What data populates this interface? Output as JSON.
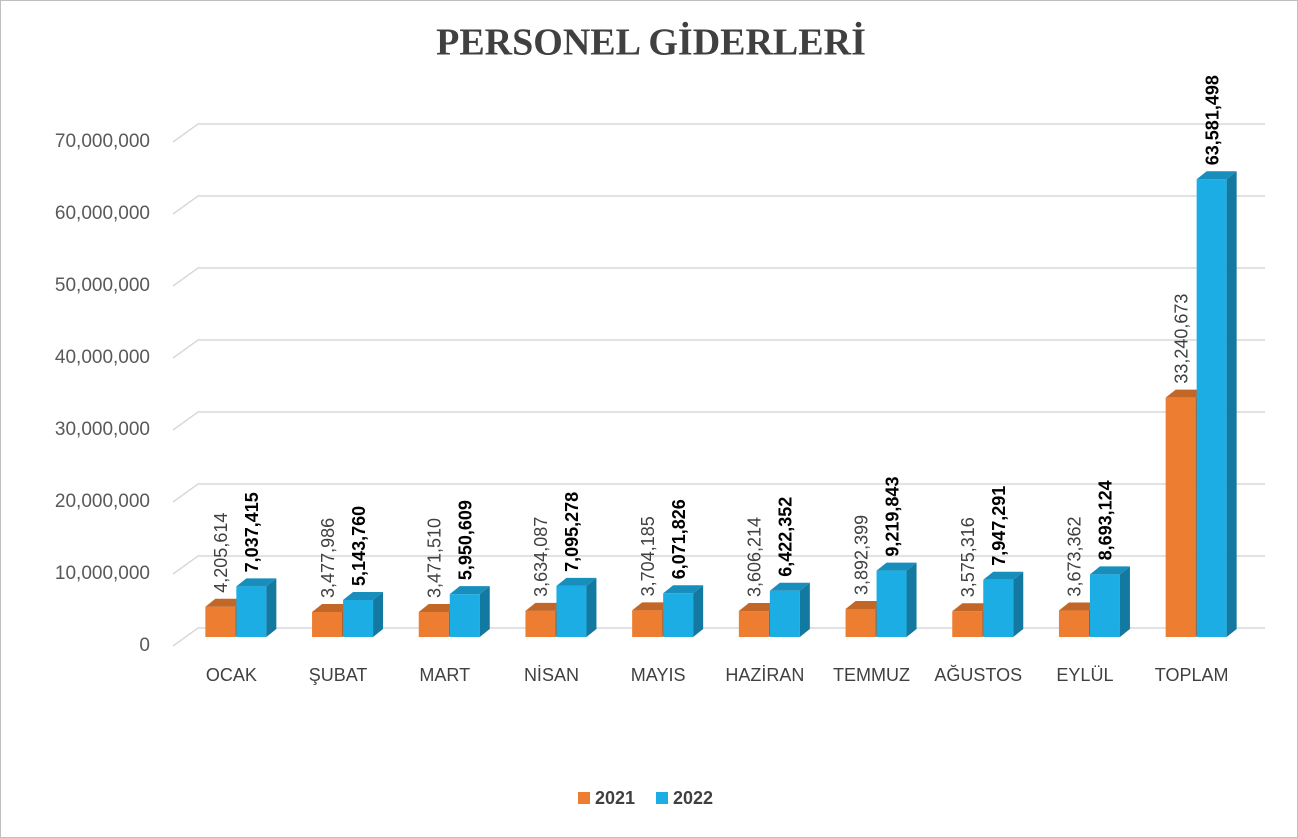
{
  "chart_data": {
    "type": "bar",
    "title": "PERSONEL GİDERLERİ",
    "categories": [
      "OCAK",
      "ŞUBAT",
      "MART",
      "NİSAN",
      "MAYIS",
      "HAZİRAN",
      "TEMMUZ",
      "AĞUSTOS",
      "EYLÜL",
      "TOPLAM"
    ],
    "series": [
      {
        "name": "2021",
        "color": "#ED7D31",
        "values": [
          4205614,
          3477986,
          3471510,
          3634087,
          3704185,
          3606214,
          3892399,
          3575316,
          3673362,
          33240673
        ],
        "value_labels": [
          "4,205,614",
          "3,477,986",
          "3,471,510",
          "3,634,087",
          "3,704,185",
          "3,606,214",
          "3,892,399",
          "3,575,316",
          "3,673,362",
          "33,240,673"
        ]
      },
      {
        "name": "2022",
        "color": "#1CADE4",
        "values": [
          7037415,
          5143760,
          5950609,
          7095278,
          6071826,
          6422352,
          9219843,
          7947291,
          8693124,
          63581498
        ],
        "value_labels": [
          "7,037,415",
          "5,143,760",
          "5,950,609",
          "7,095,278",
          "6,071,826",
          "6,422,352",
          "9,219,843",
          "7,947,291",
          "8,693,124",
          "63,581,498"
        ]
      }
    ],
    "ylim": [
      0,
      70000000
    ],
    "yticks": [
      0,
      {
        "value": 10000000,
        "label": "10,000,000"
      },
      {
        "value": 20000000,
        "label": "20,000,000"
      },
      {
        "value": 30000000,
        "label": "30,000,000"
      },
      {
        "value": 40000000,
        "label": "40,000,000"
      },
      {
        "value": 50000000,
        "label": "50,000,000"
      },
      {
        "value": 60000000,
        "label": "60,000,000"
      },
      {
        "value": 70000000,
        "label": "70,000,000"
      }
    ],
    "grid": true,
    "legend": "bottom"
  }
}
